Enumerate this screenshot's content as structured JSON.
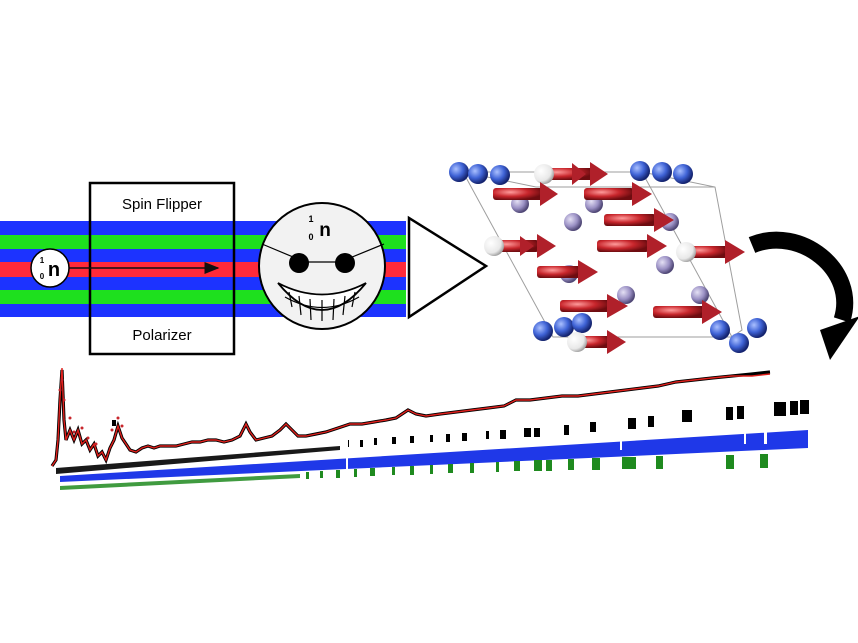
{
  "labels": {
    "top": "Spin Flipper",
    "bottom": "Polarizer"
  },
  "neutron_symbol": {
    "mass_number": "1",
    "atomic_number": "0",
    "letter": "n"
  },
  "colors": {
    "beam_blue": "#1c33ff",
    "beam_green": "#1ee01e",
    "beam_red": "#ff2a3a",
    "arrow_red": "#c8262c",
    "atom_blue": "#3f63d6",
    "atom_lavender": "#9a90c4",
    "fit_red": "#e0201c",
    "tick_blue": "#1f38e8",
    "tick_green": "#1f8a1f"
  }
}
